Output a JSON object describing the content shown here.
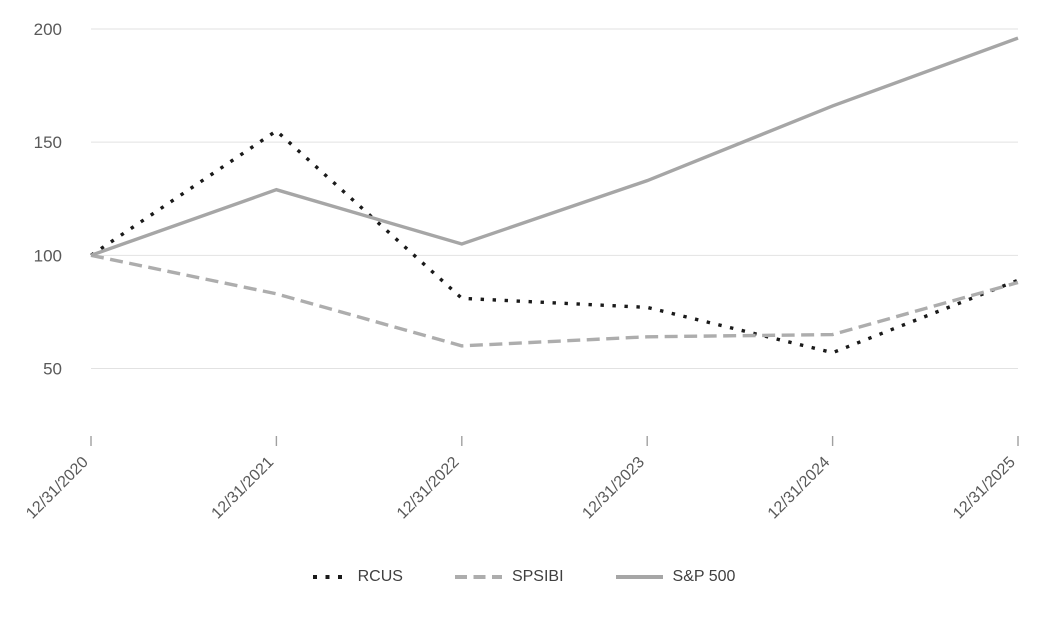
{
  "chart_data": {
    "type": "line",
    "title": "",
    "categories": [
      "12/31/2020",
      "12/31/2021",
      "12/31/2022",
      "12/31/2023",
      "12/31/2024",
      "12/31/2025"
    ],
    "series": [
      {
        "name": "RCUS",
        "style": "dotted",
        "color": "#1a1a1a",
        "values": [
          100,
          155,
          81,
          77,
          57,
          89
        ]
      },
      {
        "name": "SPSIBI",
        "style": "dashed",
        "color": "#adadad",
        "values": [
          100,
          83,
          60,
          64,
          65,
          88
        ]
      },
      {
        "name": "S&P 500",
        "style": "solid",
        "color": "#a6a6a6",
        "values": [
          100,
          129,
          105,
          133,
          166,
          196
        ]
      }
    ],
    "y_axis": {
      "ticks": [
        50,
        100,
        150,
        200
      ],
      "range": [
        0,
        210
      ]
    },
    "x_axis": {
      "tick_marks": true,
      "label_rotation_deg": 45
    },
    "grid": true,
    "legend_position": "bottom",
    "styles": {
      "gridline_color": "#e2e2e2",
      "axis_label_color": "#595959",
      "legend_text_color": "#404040",
      "tick_color": "#a0a0a0",
      "background": "#ffffff"
    }
  }
}
